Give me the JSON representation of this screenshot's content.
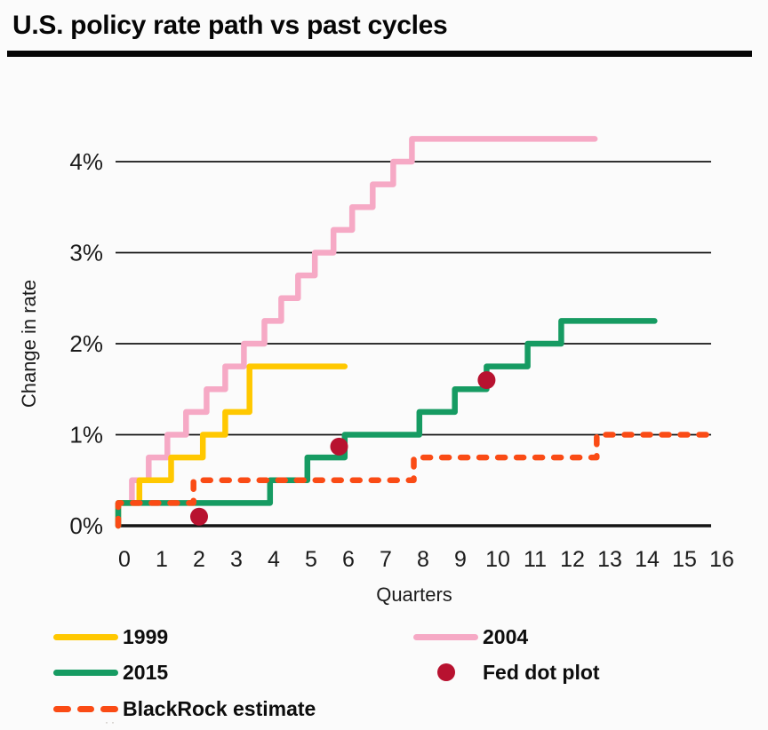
{
  "title": "U.S. policy rate path vs past cycles",
  "chart_data": {
    "type": "line",
    "subtype": "step",
    "title": "U.S. policy rate path vs past cycles",
    "xlabel": "Quarters",
    "ylabel": "Change in rate",
    "xlim": [
      0,
      16
    ],
    "ylim": [
      0,
      4.5
    ],
    "grid": "horizontal",
    "legend_position": "bottom",
    "x_ticks": [
      0,
      1,
      2,
      3,
      4,
      5,
      6,
      7,
      8,
      9,
      10,
      11,
      12,
      13,
      14,
      15,
      16
    ],
    "y_ticks": [
      {
        "value": 0,
        "label": "0%"
      },
      {
        "value": 1,
        "label": "1%"
      },
      {
        "value": 2,
        "label": "2%"
      },
      {
        "value": 3,
        "label": "3%"
      },
      {
        "value": 4,
        "label": "4%"
      }
    ],
    "series": [
      {
        "name": "2004",
        "type": "step",
        "color": "#F6A9C5",
        "line_style": "solid",
        "steps": [
          [
            0,
            0.25
          ],
          [
            0.2,
            0.5
          ],
          [
            0.65,
            0.75
          ],
          [
            1.15,
            1.0
          ],
          [
            1.65,
            1.25
          ],
          [
            2.2,
            1.5
          ],
          [
            2.7,
            1.75
          ],
          [
            3.2,
            2.0
          ],
          [
            3.75,
            2.25
          ],
          [
            4.2,
            2.5
          ],
          [
            4.65,
            2.75
          ],
          [
            5.1,
            3.0
          ],
          [
            5.6,
            3.25
          ],
          [
            6.1,
            3.5
          ],
          [
            6.65,
            3.75
          ],
          [
            7.2,
            4.0
          ],
          [
            7.7,
            4.25
          ]
        ],
        "end_x": 12.6
      },
      {
        "name": "1999",
        "type": "step",
        "color": "#FFC800",
        "line_style": "solid",
        "steps": [
          [
            0,
            0.25
          ],
          [
            0.4,
            0.5
          ],
          [
            1.25,
            0.75
          ],
          [
            2.1,
            1.0
          ],
          [
            2.7,
            1.25
          ],
          [
            3.35,
            1.75
          ]
        ],
        "end_x": 5.9
      },
      {
        "name": "2015",
        "type": "step",
        "color": "#169B62",
        "line_style": "solid",
        "steps": [
          [
            0,
            0.25
          ],
          [
            3.9,
            0.5
          ],
          [
            4.9,
            0.75
          ],
          [
            5.9,
            1.0
          ],
          [
            7.9,
            1.25
          ],
          [
            8.85,
            1.5
          ],
          [
            9.7,
            1.75
          ],
          [
            10.8,
            2.0
          ],
          [
            11.7,
            2.25
          ]
        ],
        "end_x": 14.2
      },
      {
        "name": "BlackRock estimate",
        "type": "step",
        "color": "#FA4B15",
        "line_style": "dashed",
        "steps": [
          [
            0,
            0.25
          ],
          [
            1.85,
            0.5
          ],
          [
            7.75,
            0.75
          ],
          [
            12.65,
            1.0
          ]
        ],
        "end_x": 15.8
      },
      {
        "name": "Fed dot plot",
        "type": "scatter",
        "color": "#B81230",
        "points": [
          [
            2,
            0.1
          ],
          [
            5.75,
            0.87
          ],
          [
            9.7,
            1.6
          ]
        ]
      }
    ]
  },
  "legend": {
    "items": [
      {
        "label": "1999",
        "swatch": "line",
        "color": "#FFC800"
      },
      {
        "label": "2004",
        "swatch": "line",
        "color": "#F6A9C5"
      },
      {
        "label": "2015",
        "swatch": "line",
        "color": "#169B62"
      },
      {
        "label": "Fed dot plot",
        "swatch": "dot",
        "color": "#B81230"
      },
      {
        "label": "BlackRock estimate",
        "swatch": "dashed-line",
        "color": "#FA4B15"
      }
    ]
  },
  "footnote_artifact": "··"
}
